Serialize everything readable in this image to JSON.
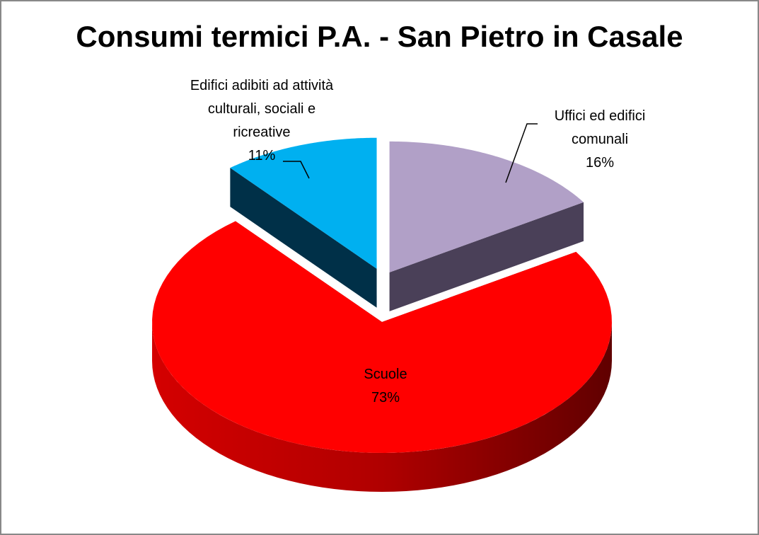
{
  "chart_data": {
    "type": "pie3d",
    "title": "Consumi termici P.A. - San Pietro in Casale",
    "categories": [
      "Uffici ed edifici comunali",
      "Scuole",
      "Edifici adibiti ad attività culturali, sociali e ricreative"
    ],
    "values": [
      16,
      73,
      11
    ],
    "value_labels": [
      "16%",
      "73%",
      "11%"
    ],
    "colors": [
      "#b1a0c7",
      "#ff0000",
      "#00b0f0"
    ]
  }
}
